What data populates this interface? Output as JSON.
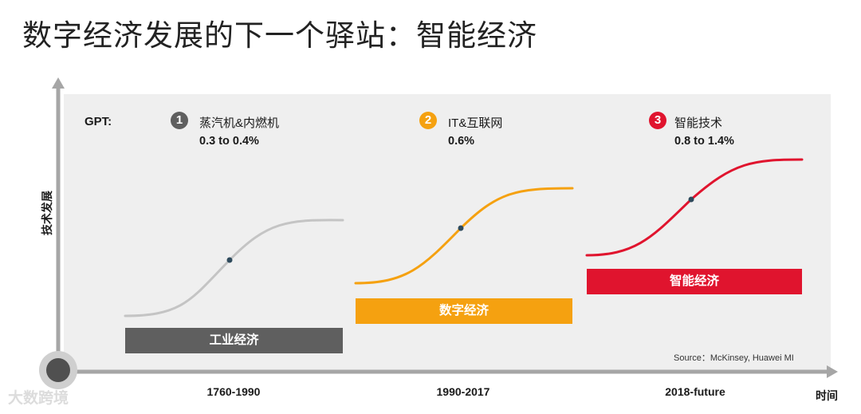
{
  "title": "数字经济发展的下一个驿站：智能经济",
  "y_axis_label": "技术发展",
  "x_axis_label": "时间",
  "gpt_label": "GPT:",
  "stages": [
    {
      "number": "1",
      "technology": "蒸汽机&内燃机",
      "contribution": "0.3 to 0.4%",
      "economy": "工业经济",
      "period": "1760-1990",
      "color": "#5f5f5f",
      "curve_color": "#c4c4c4"
    },
    {
      "number": "2",
      "technology": "IT&互联网",
      "contribution": "0.6%",
      "economy": "数字经济",
      "period": "1990-2017",
      "color": "#f5a110",
      "curve_color": "#f5a110"
    },
    {
      "number": "3",
      "technology": "智能技术",
      "contribution": "0.8 to 1.4%",
      "economy": "智能经济",
      "period": "2018-future",
      "color": "#e0142e",
      "curve_color": "#e0142e"
    }
  ],
  "source": "Source：McKinsey, Huawei MI",
  "watermark": "大数跨境",
  "colors": {
    "axis": "#a6a6a6",
    "panel": "#efefef",
    "inflection_dot": "#2e4a5c"
  }
}
